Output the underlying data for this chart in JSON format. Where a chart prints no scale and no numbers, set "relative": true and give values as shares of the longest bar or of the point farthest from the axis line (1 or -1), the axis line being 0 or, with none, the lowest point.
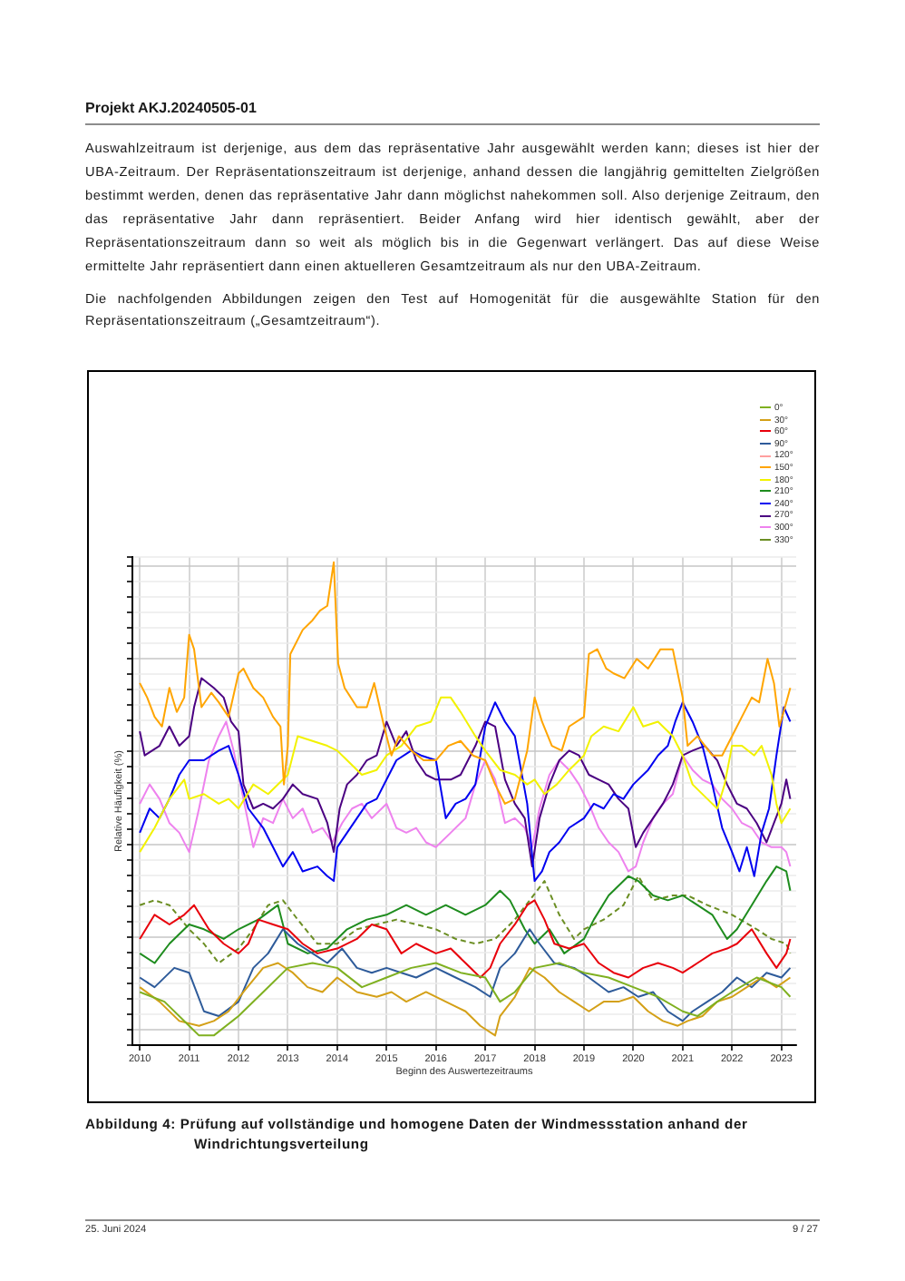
{
  "chart_data": {
    "type": "line",
    "title": "Abbildung 4: Prüfung auf vollständige und homogene Daten der Windmessstation anhand der Windrichtungsverteilung",
    "xlabel": "Beginn des Auswertezeitraums",
    "ylabel": "Relative Häufigkeit (%)",
    "annotations": [
      "Projekt AKJ.20240505-01",
      "Auswahlzeitraum ist derjenige, aus dem das repräsentative Jahr ausgewählt werden kann; dieses ist hier der UBA-Zeitraum. Der Repräsentationszeitraum ist derjenige, anhand dessen die langjährig gemittelten Zielgrößen bestimmt werden, denen das repräsentative Jahr dann möglichst nahekommen soll. Also derjenige Zeitraum, den das repräsentative Jahr dann repräsentiert. Beider Anfang wird hier identisch gewählt, aber der Repräsentationszeitraum dann so weit als möglich bis in die Gegenwart verlängert. Das auf diese Weise ermittelte Jahr repräsentiert dann einen aktuelleren Gesamtzeitraum als nur den UBA-Zeitraum.",
      "Die nachfolgenden Abbildungen zeigen den Test auf Homogenität für die ausgewählte Station für den Repräsentationszeitraum („Gesamtzeitraum“).",
      "25. Juni 2024",
      "9 / 27"
    ],
    "relative": true,
    "xlim": [
      2009.85,
      2023.3
    ],
    "xticks": [
      2010,
      2011,
      2012,
      2013,
      2014,
      2015,
      2016,
      2017,
      2018,
      2019,
      2020,
      2021,
      2022,
      2023
    ],
    "grid": true,
    "legend": "top right",
    "marker": "none",
    "series": [
      {
        "name": "0°",
        "color": "#7fb020",
        "x": [
          2010.0,
          2010.5,
          2011.0,
          2011.2,
          2011.5,
          2012.0,
          2012.5,
          2013.0,
          2013.5,
          2014.0,
          2014.5,
          2015.0,
          2015.5,
          2016.0,
          2016.5,
          2017.0,
          2017.3,
          2017.6,
          2018.0,
          2018.5,
          2019.0,
          2019.5,
          2020.0,
          2020.5,
          2021.0,
          2021.3,
          2021.7,
          2022.0,
          2022.5,
          2023.0,
          2023.18
        ],
        "values": [
          0.11,
          0.09,
          0.04,
          0.02,
          0.02,
          0.06,
          0.11,
          0.16,
          0.17,
          0.16,
          0.12,
          0.14,
          0.16,
          0.17,
          0.15,
          0.14,
          0.09,
          0.11,
          0.16,
          0.17,
          0.15,
          0.14,
          0.12,
          0.1,
          0.07,
          0.06,
          0.09,
          0.11,
          0.14,
          0.12,
          0.1
        ]
      },
      {
        "name": "30°",
        "color": "#d4a017",
        "x": [
          2010.0,
          2010.4,
          2010.8,
          2011.2,
          2011.5,
          2011.8,
          2012.1,
          2012.5,
          2012.8,
          2013.1,
          2013.4,
          2013.7,
          2014.0,
          2014.4,
          2014.8,
          2015.1,
          2015.4,
          2015.8,
          2016.2,
          2016.6,
          2016.9,
          2017.2,
          2017.3,
          2017.6,
          2017.9,
          2018.2,
          2018.5,
          2018.8,
          2019.1,
          2019.4,
          2019.7,
          2020.0,
          2020.3,
          2020.6,
          2020.9,
          2021.1,
          2021.4,
          2021.7,
          2022.0,
          2022.3,
          2022.6,
          2022.9,
          2023.18
        ],
        "values": [
          0.12,
          0.09,
          0.05,
          0.04,
          0.05,
          0.07,
          0.11,
          0.16,
          0.17,
          0.15,
          0.12,
          0.11,
          0.14,
          0.11,
          0.1,
          0.11,
          0.09,
          0.11,
          0.09,
          0.07,
          0.04,
          0.02,
          0.06,
          0.1,
          0.16,
          0.14,
          0.11,
          0.09,
          0.07,
          0.09,
          0.09,
          0.1,
          0.07,
          0.05,
          0.04,
          0.05,
          0.06,
          0.09,
          0.1,
          0.12,
          0.14,
          0.12,
          0.14
        ]
      },
      {
        "name": "60°",
        "color": "#e8000b",
        "x": [
          2010.0,
          2010.3,
          2010.6,
          2010.9,
          2011.1,
          2011.4,
          2011.7,
          2012.0,
          2012.2,
          2012.4,
          2012.7,
          2013.0,
          2013.3,
          2013.6,
          2014.0,
          2014.4,
          2014.7,
          2015.0,
          2015.3,
          2015.6,
          2016.0,
          2016.3,
          2016.6,
          2016.9,
          2017.1,
          2017.3,
          2017.6,
          2017.85,
          2018.0,
          2018.2,
          2018.4,
          2018.7,
          2019.0,
          2019.3,
          2019.6,
          2019.9,
          2020.2,
          2020.5,
          2020.8,
          2021.0,
          2021.3,
          2021.6,
          2021.9,
          2022.1,
          2022.4,
          2022.7,
          2022.9,
          2023.1,
          2023.18
        ],
        "values": [
          0.22,
          0.27,
          0.25,
          0.27,
          0.29,
          0.24,
          0.21,
          0.19,
          0.21,
          0.26,
          0.25,
          0.24,
          0.21,
          0.19,
          0.2,
          0.22,
          0.25,
          0.24,
          0.19,
          0.21,
          0.19,
          0.2,
          0.17,
          0.14,
          0.16,
          0.21,
          0.25,
          0.29,
          0.3,
          0.26,
          0.21,
          0.2,
          0.21,
          0.17,
          0.15,
          0.14,
          0.16,
          0.17,
          0.16,
          0.15,
          0.17,
          0.19,
          0.2,
          0.21,
          0.24,
          0.19,
          0.16,
          0.19,
          0.22
        ]
      },
      {
        "name": "90°",
        "color": "#2e5b9a",
        "x": [
          2010.0,
          2010.3,
          2010.7,
          2011.0,
          2011.3,
          2011.6,
          2012.0,
          2012.3,
          2012.6,
          2012.9,
          2013.2,
          2013.5,
          2013.8,
          2014.1,
          2014.4,
          2014.7,
          2015.0,
          2015.3,
          2015.6,
          2016.0,
          2016.4,
          2016.8,
          2017.1,
          2017.3,
          2017.6,
          2017.9,
          2018.1,
          2018.4,
          2018.8,
          2019.1,
          2019.5,
          2019.8,
          2020.1,
          2020.4,
          2020.7,
          2021.0,
          2021.2,
          2021.5,
          2021.8,
          2022.1,
          2022.4,
          2022.7,
          2023.0,
          2023.18
        ],
        "values": [
          0.14,
          0.12,
          0.16,
          0.15,
          0.07,
          0.06,
          0.09,
          0.16,
          0.19,
          0.24,
          0.21,
          0.19,
          0.17,
          0.2,
          0.16,
          0.15,
          0.16,
          0.15,
          0.14,
          0.16,
          0.14,
          0.12,
          0.1,
          0.16,
          0.19,
          0.24,
          0.21,
          0.17,
          0.16,
          0.14,
          0.11,
          0.12,
          0.1,
          0.11,
          0.07,
          0.05,
          0.07,
          0.09,
          0.11,
          0.14,
          0.12,
          0.15,
          0.14,
          0.16
        ]
      },
      {
        "name": "120°",
        "color": "#ffa0a0"
      },
      {
        "name": "150°",
        "color": "#ffa500",
        "x": [
          2010.0,
          2010.15,
          2010.3,
          2010.45,
          2010.6,
          2010.75,
          2010.9,
          2011.0,
          2011.1,
          2011.25,
          2011.45,
          2011.6,
          2011.8,
          2012.0,
          2012.1,
          2012.3,
          2012.5,
          2012.7,
          2012.85,
          2012.92,
          2013.0,
          2013.05,
          2013.3,
          2013.5,
          2013.65,
          2013.8,
          2013.93,
          2014.02,
          2014.15,
          2014.4,
          2014.6,
          2014.75,
          2014.95,
          2015.1,
          2015.25,
          2015.5,
          2015.75,
          2016.0,
          2016.25,
          2016.5,
          2016.75,
          2017.0,
          2017.2,
          2017.4,
          2017.6,
          2017.85,
          2018.0,
          2018.15,
          2018.35,
          2018.55,
          2018.7,
          2019.0,
          2019.1,
          2019.27,
          2019.45,
          2019.6,
          2019.82,
          2020.07,
          2020.3,
          2020.55,
          2020.8,
          2021.0,
          2021.1,
          2021.3,
          2021.6,
          2021.8,
          2022.0,
          2022.2,
          2022.4,
          2022.55,
          2022.72,
          2022.85,
          2022.96,
          2023.1,
          2023.18
        ],
        "values": [
          0.75,
          0.72,
          0.68,
          0.66,
          0.74,
          0.69,
          0.72,
          0.85,
          0.82,
          0.7,
          0.73,
          0.71,
          0.68,
          0.77,
          0.78,
          0.74,
          0.72,
          0.68,
          0.66,
          0.54,
          0.62,
          0.81,
          0.86,
          0.88,
          0.9,
          0.91,
          1.0,
          0.79,
          0.74,
          0.7,
          0.7,
          0.75,
          0.66,
          0.6,
          0.64,
          0.61,
          0.59,
          0.59,
          0.62,
          0.63,
          0.6,
          0.59,
          0.54,
          0.5,
          0.51,
          0.61,
          0.72,
          0.67,
          0.62,
          0.61,
          0.66,
          0.68,
          0.81,
          0.82,
          0.78,
          0.77,
          0.76,
          0.8,
          0.78,
          0.82,
          0.82,
          0.72,
          0.62,
          0.64,
          0.6,
          0.6,
          0.64,
          0.68,
          0.72,
          0.71,
          0.8,
          0.75,
          0.66,
          0.71,
          0.74
        ]
      },
      {
        "name": "180°",
        "color": "#f2f200",
        "x": [
          2010.0,
          2010.3,
          2010.6,
          2010.9,
          2011.0,
          2011.3,
          2011.6,
          2011.8,
          2012.0,
          2012.3,
          2012.6,
          2012.9,
          2013.0,
          2013.2,
          2013.5,
          2013.8,
          2014.0,
          2014.2,
          2014.5,
          2014.8,
          2015.0,
          2015.3,
          2015.6,
          2015.9,
          2016.1,
          2016.3,
          2016.5,
          2016.8,
          2017.0,
          2017.3,
          2017.6,
          2017.85,
          2018.0,
          2018.2,
          2018.45,
          2018.7,
          2019.0,
          2019.15,
          2019.4,
          2019.7,
          2020.0,
          2020.2,
          2020.5,
          2020.8,
          2021.0,
          2021.2,
          2021.5,
          2021.7,
          2021.85,
          2022.0,
          2022.2,
          2022.45,
          2022.6,
          2022.8,
          2022.9,
          2023.0,
          2023.18
        ],
        "values": [
          0.4,
          0.45,
          0.51,
          0.55,
          0.51,
          0.52,
          0.5,
          0.51,
          0.49,
          0.54,
          0.52,
          0.55,
          0.56,
          0.64,
          0.63,
          0.62,
          0.61,
          0.59,
          0.56,
          0.57,
          0.6,
          0.62,
          0.66,
          0.67,
          0.72,
          0.72,
          0.69,
          0.64,
          0.61,
          0.57,
          0.56,
          0.54,
          0.55,
          0.52,
          0.54,
          0.57,
          0.6,
          0.64,
          0.66,
          0.65,
          0.7,
          0.66,
          0.67,
          0.64,
          0.6,
          0.54,
          0.51,
          0.49,
          0.54,
          0.62,
          0.62,
          0.6,
          0.62,
          0.56,
          0.5,
          0.46,
          0.49
        ]
      },
      {
        "name": "210°",
        "color": "#1e8c1e",
        "x": [
          2010.0,
          2010.3,
          2010.6,
          2011.0,
          2011.3,
          2011.7,
          2012.0,
          2012.4,
          2012.8,
          2013.0,
          2013.4,
          2013.8,
          2014.2,
          2014.6,
          2015.0,
          2015.4,
          2015.8,
          2016.2,
          2016.6,
          2017.0,
          2017.3,
          2017.5,
          2017.8,
          2018.0,
          2018.3,
          2018.6,
          2019.0,
          2019.2,
          2019.5,
          2019.9,
          2020.1,
          2020.4,
          2020.7,
          2021.0,
          2021.3,
          2021.6,
          2021.9,
          2022.1,
          2022.4,
          2022.7,
          2022.9,
          2023.1,
          2023.18
        ],
        "values": [
          0.19,
          0.17,
          0.21,
          0.25,
          0.24,
          0.22,
          0.24,
          0.26,
          0.29,
          0.21,
          0.19,
          0.2,
          0.24,
          0.26,
          0.27,
          0.29,
          0.27,
          0.29,
          0.27,
          0.29,
          0.32,
          0.3,
          0.24,
          0.21,
          0.24,
          0.19,
          0.22,
          0.26,
          0.31,
          0.35,
          0.34,
          0.31,
          0.3,
          0.31,
          0.29,
          0.27,
          0.22,
          0.24,
          0.29,
          0.34,
          0.37,
          0.36,
          0.32
        ]
      },
      {
        "name": "240°",
        "color": "#0000f0",
        "x": [
          2010.0,
          2010.2,
          2010.4,
          2010.6,
          2010.8,
          2011.0,
          2011.3,
          2011.6,
          2011.8,
          2012.0,
          2012.2,
          2012.5,
          2012.7,
          2012.9,
          2013.1,
          2013.3,
          2013.6,
          2013.8,
          2013.93,
          2014.0,
          2014.2,
          2014.4,
          2014.6,
          2014.8,
          2015.0,
          2015.2,
          2015.5,
          2015.7,
          2016.0,
          2016.2,
          2016.4,
          2016.6,
          2016.8,
          2017.0,
          2017.2,
          2017.4,
          2017.6,
          2017.85,
          2018.0,
          2018.15,
          2018.3,
          2018.5,
          2018.7,
          2019.0,
          2019.2,
          2019.4,
          2019.6,
          2019.8,
          2020.0,
          2020.3,
          2020.5,
          2020.7,
          2020.85,
          2021.0,
          2021.2,
          2021.4,
          2021.6,
          2021.8,
          2022.0,
          2022.15,
          2022.3,
          2022.45,
          2022.6,
          2022.75,
          2022.9,
          2023.05,
          2023.18
        ],
        "values": [
          0.44,
          0.49,
          0.47,
          0.51,
          0.56,
          0.59,
          0.59,
          0.61,
          0.62,
          0.56,
          0.49,
          0.45,
          0.41,
          0.37,
          0.4,
          0.36,
          0.37,
          0.35,
          0.34,
          0.41,
          0.44,
          0.47,
          0.5,
          0.51,
          0.55,
          0.59,
          0.61,
          0.6,
          0.59,
          0.47,
          0.5,
          0.51,
          0.54,
          0.66,
          0.71,
          0.67,
          0.64,
          0.5,
          0.34,
          0.36,
          0.4,
          0.42,
          0.45,
          0.47,
          0.5,
          0.49,
          0.52,
          0.51,
          0.54,
          0.57,
          0.6,
          0.62,
          0.67,
          0.71,
          0.67,
          0.62,
          0.54,
          0.45,
          0.4,
          0.36,
          0.41,
          0.35,
          0.44,
          0.49,
          0.6,
          0.7,
          0.67
        ]
      },
      {
        "name": "270°",
        "color": "#4b0082",
        "x": [
          2010.0,
          2010.1,
          2010.4,
          2010.6,
          2010.8,
          2011.0,
          2011.1,
          2011.25,
          2011.5,
          2011.7,
          2011.85,
          2012.0,
          2012.1,
          2012.3,
          2012.5,
          2012.7,
          2012.9,
          2013.1,
          2013.3,
          2013.6,
          2013.8,
          2013.93,
          2014.05,
          2014.2,
          2014.4,
          2014.6,
          2014.8,
          2015.0,
          2015.2,
          2015.4,
          2015.6,
          2015.8,
          2016.0,
          2016.3,
          2016.5,
          2016.8,
          2017.0,
          2017.2,
          2017.4,
          2017.6,
          2017.8,
          2017.95,
          2018.1,
          2018.3,
          2018.5,
          2018.7,
          2018.9,
          2019.1,
          2019.3,
          2019.5,
          2019.7,
          2019.9,
          2020.05,
          2020.2,
          2020.4,
          2020.6,
          2020.8,
          2021.0,
          2021.2,
          2021.45,
          2021.7,
          2021.9,
          2022.1,
          2022.3,
          2022.5,
          2022.7,
          2022.85,
          2023.0,
          2023.1,
          2023.18
        ],
        "values": [
          0.65,
          0.6,
          0.62,
          0.66,
          0.62,
          0.64,
          0.7,
          0.76,
          0.74,
          0.72,
          0.67,
          0.65,
          0.54,
          0.49,
          0.5,
          0.49,
          0.51,
          0.54,
          0.52,
          0.51,
          0.46,
          0.4,
          0.49,
          0.54,
          0.56,
          0.59,
          0.6,
          0.67,
          0.62,
          0.65,
          0.59,
          0.56,
          0.55,
          0.55,
          0.56,
          0.62,
          0.67,
          0.66,
          0.55,
          0.5,
          0.47,
          0.37,
          0.47,
          0.54,
          0.59,
          0.61,
          0.6,
          0.56,
          0.55,
          0.54,
          0.51,
          0.49,
          0.41,
          0.44,
          0.47,
          0.5,
          0.54,
          0.6,
          0.61,
          0.62,
          0.59,
          0.54,
          0.5,
          0.49,
          0.46,
          0.42,
          0.46,
          0.5,
          0.55,
          0.51
        ]
      },
      {
        "name": "300°",
        "color": "#ee82ee",
        "x": [
          2010.0,
          2010.2,
          2010.4,
          2010.6,
          2010.8,
          2011.0,
          2011.2,
          2011.4,
          2011.6,
          2011.75,
          2011.9,
          2012.1,
          2012.3,
          2012.5,
          2012.7,
          2012.9,
          2013.1,
          2013.3,
          2013.5,
          2013.7,
          2013.9,
          2014.1,
          2014.3,
          2014.5,
          2014.7,
          2015.0,
          2015.2,
          2015.4,
          2015.6,
          2015.8,
          2016.0,
          2016.3,
          2016.6,
          2016.8,
          2017.0,
          2017.2,
          2017.4,
          2017.6,
          2017.8,
          2017.95,
          2018.1,
          2018.3,
          2018.5,
          2018.7,
          2018.9,
          2019.1,
          2019.3,
          2019.5,
          2019.7,
          2019.9,
          2020.05,
          2020.2,
          2020.4,
          2020.6,
          2020.8,
          2021.0,
          2021.2,
          2021.4,
          2021.6,
          2021.8,
          2022.0,
          2022.2,
          2022.4,
          2022.6,
          2022.8,
          2023.0,
          2023.1,
          2023.18
        ],
        "values": [
          0.5,
          0.54,
          0.51,
          0.46,
          0.44,
          0.4,
          0.49,
          0.59,
          0.64,
          0.67,
          0.61,
          0.51,
          0.41,
          0.47,
          0.46,
          0.51,
          0.47,
          0.49,
          0.44,
          0.45,
          0.42,
          0.46,
          0.49,
          0.5,
          0.47,
          0.5,
          0.45,
          0.44,
          0.45,
          0.42,
          0.41,
          0.44,
          0.47,
          0.54,
          0.59,
          0.55,
          0.46,
          0.47,
          0.45,
          0.41,
          0.49,
          0.56,
          0.59,
          0.57,
          0.54,
          0.5,
          0.45,
          0.42,
          0.4,
          0.36,
          0.37,
          0.42,
          0.47,
          0.5,
          0.52,
          0.6,
          0.57,
          0.55,
          0.54,
          0.51,
          0.49,
          0.46,
          0.45,
          0.42,
          0.41,
          0.41,
          0.4,
          0.37
        ]
      },
      {
        "name": "330°",
        "color": "#6b8e23",
        "line_style": "dashed",
        "x": [
          2010.0,
          2010.3,
          2010.6,
          2011.0,
          2011.3,
          2011.6,
          2012.0,
          2012.3,
          2012.6,
          2012.9,
          2013.2,
          2013.6,
          2014.0,
          2014.4,
          2014.8,
          2015.2,
          2015.6,
          2016.0,
          2016.4,
          2016.8,
          2017.2,
          2017.6,
          2017.9,
          2018.2,
          2018.5,
          2018.8,
          2019.0,
          2019.4,
          2019.8,
          2020.1,
          2020.4,
          2020.8,
          2021.1,
          2021.5,
          2022.0,
          2022.5,
          2022.8,
          2023.1,
          2023.18
        ],
        "values": [
          0.29,
          0.3,
          0.29,
          0.24,
          0.21,
          0.17,
          0.2,
          0.24,
          0.29,
          0.3,
          0.26,
          0.21,
          0.21,
          0.24,
          0.25,
          0.26,
          0.25,
          0.24,
          0.22,
          0.21,
          0.22,
          0.26,
          0.3,
          0.34,
          0.27,
          0.22,
          0.24,
          0.26,
          0.29,
          0.35,
          0.3,
          0.31,
          0.31,
          0.29,
          0.27,
          0.24,
          0.22,
          0.21,
          0.19
        ]
      }
    ]
  }
}
